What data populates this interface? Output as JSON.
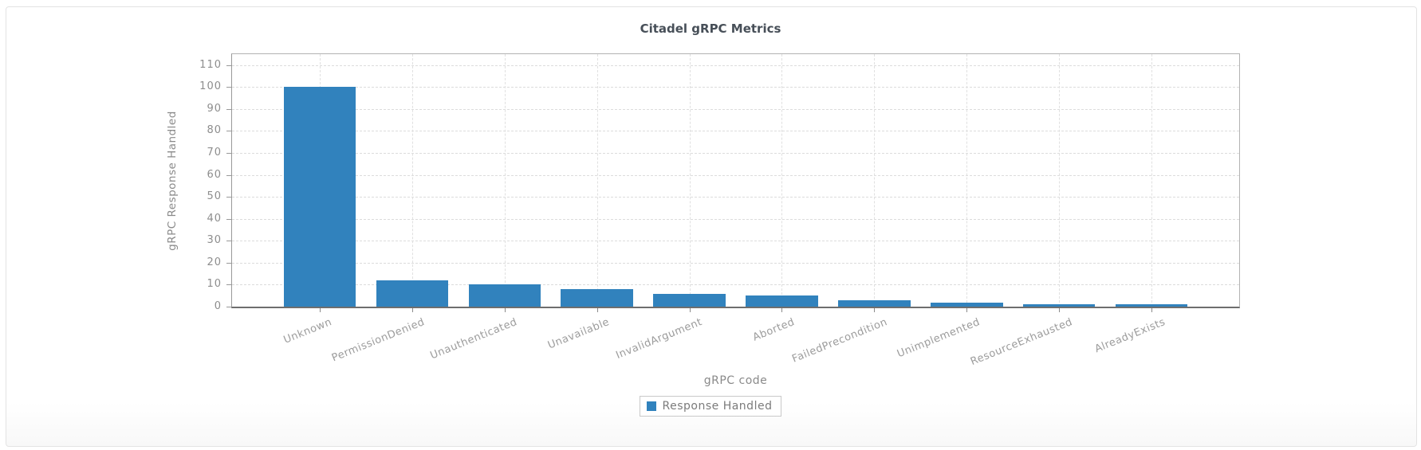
{
  "card": {
    "border_color": "#e3e3e3",
    "background": "#ffffff"
  },
  "chart_data": {
    "type": "bar",
    "title": "Citadel gRPC Metrics",
    "xlabel": "gRPC code",
    "ylabel": "gRPC Response Handled",
    "categories": [
      "Unknown",
      "PermissionDenied",
      "Unauthenticated",
      "Unavailable",
      "InvalidArgument",
      "Aborted",
      "FailedPrecondition",
      "Unimplemented",
      "ResourceExhausted",
      "AlreadyExists"
    ],
    "series": [
      {
        "name": "Response Handled",
        "values": [
          100,
          12,
          10,
          8,
          6,
          5,
          3,
          2,
          1,
          1
        ],
        "color": "#3182bd"
      }
    ],
    "yticks": [
      0,
      10,
      20,
      30,
      40,
      50,
      60,
      70,
      80,
      90,
      100,
      110
    ],
    "ylim": [
      0,
      115
    ],
    "grid": true,
    "gridline_style": "dashed",
    "legend_position": "bottom",
    "bar_color": "#3182bd",
    "x_label_rotation_deg": -22
  }
}
